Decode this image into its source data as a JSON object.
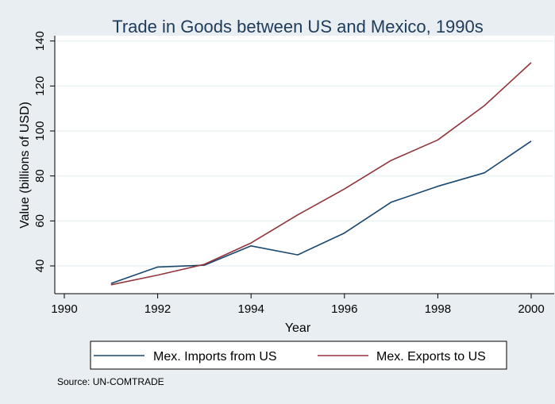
{
  "chart_data": {
    "type": "line",
    "title": "Trade in Goods between US and Mexico, 1990s",
    "xlabel": "Year",
    "ylabel": "Value (billions of USD)",
    "xlim": [
      1990,
      2000
    ],
    "ylim": [
      28,
      142
    ],
    "x_ticks": [
      "1990",
      "1992",
      "1994",
      "1996",
      "1998",
      "2000"
    ],
    "y_ticks": [
      "40",
      "60",
      "80",
      "100",
      "120",
      "140"
    ],
    "grid": true,
    "legend_position": "bottom",
    "x": [
      1991,
      1992,
      1993,
      1994,
      1995,
      1996,
      1997,
      1998,
      1999,
      2000
    ],
    "series": [
      {
        "name": "Mex. Imports from US",
        "color": "#1a476f",
        "values": [
          32.2,
          39.5,
          40.3,
          48.9,
          44.9,
          54.6,
          68.3,
          75.4,
          81.4,
          95.5
        ]
      },
      {
        "name": "Mex. Exports to US",
        "color": "#90353b",
        "values": [
          31.6,
          35.9,
          40.7,
          50.2,
          62.7,
          74.2,
          86.9,
          96.0,
          111.3,
          130.4
        ]
      }
    ],
    "source_note": "Source: UN-COMTRADE"
  }
}
